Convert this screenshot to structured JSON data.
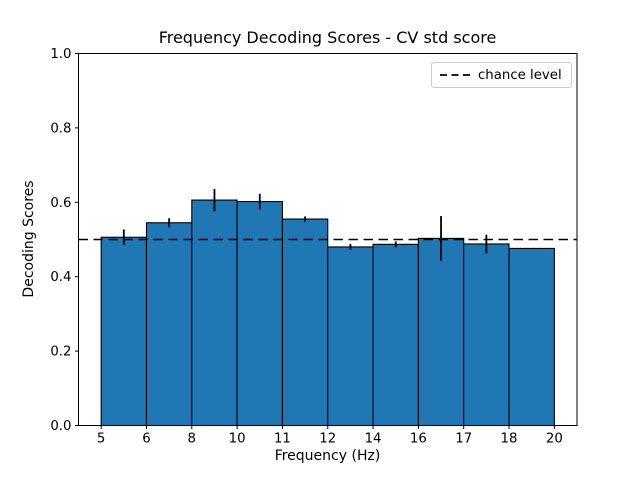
{
  "chart_data": {
    "type": "bar",
    "title": "Frequency Decoding Scores - CV std score",
    "xlabel": "Frequency (Hz)",
    "ylabel": "Decoding Scores",
    "x_tick_labels": [
      "5",
      "6",
      "8",
      "10",
      "11",
      "12",
      "14",
      "16",
      "17",
      "18",
      "20"
    ],
    "y_tick_labels": [
      "0.0",
      "0.2",
      "0.4",
      "0.6",
      "0.8",
      "1.0"
    ],
    "y_ticks": [
      0.0,
      0.2,
      0.4,
      0.6,
      0.8,
      1.0
    ],
    "ylim": [
      0.0,
      1.0
    ],
    "bin_edges_hz": [
      5,
      6,
      8,
      10,
      11,
      12,
      14,
      16,
      17,
      18,
      20
    ],
    "values": [
      0.506,
      0.545,
      0.606,
      0.602,
      0.555,
      0.48,
      0.487,
      0.503,
      0.488,
      0.476
    ],
    "errors": [
      0.021,
      0.012,
      0.03,
      0.021,
      0.007,
      0.008,
      0.008,
      0.06,
      0.025,
      0.0
    ],
    "chance_level": 0.5,
    "legend": {
      "entries": [
        "chance level"
      ],
      "position": "upper right"
    },
    "colors": {
      "bar_fill": "#1f77b4",
      "bar_edge": "#000000",
      "error_bar": "#000000",
      "chance_line": "#000000",
      "legend_border": "#cccccc"
    },
    "grid": false
  }
}
